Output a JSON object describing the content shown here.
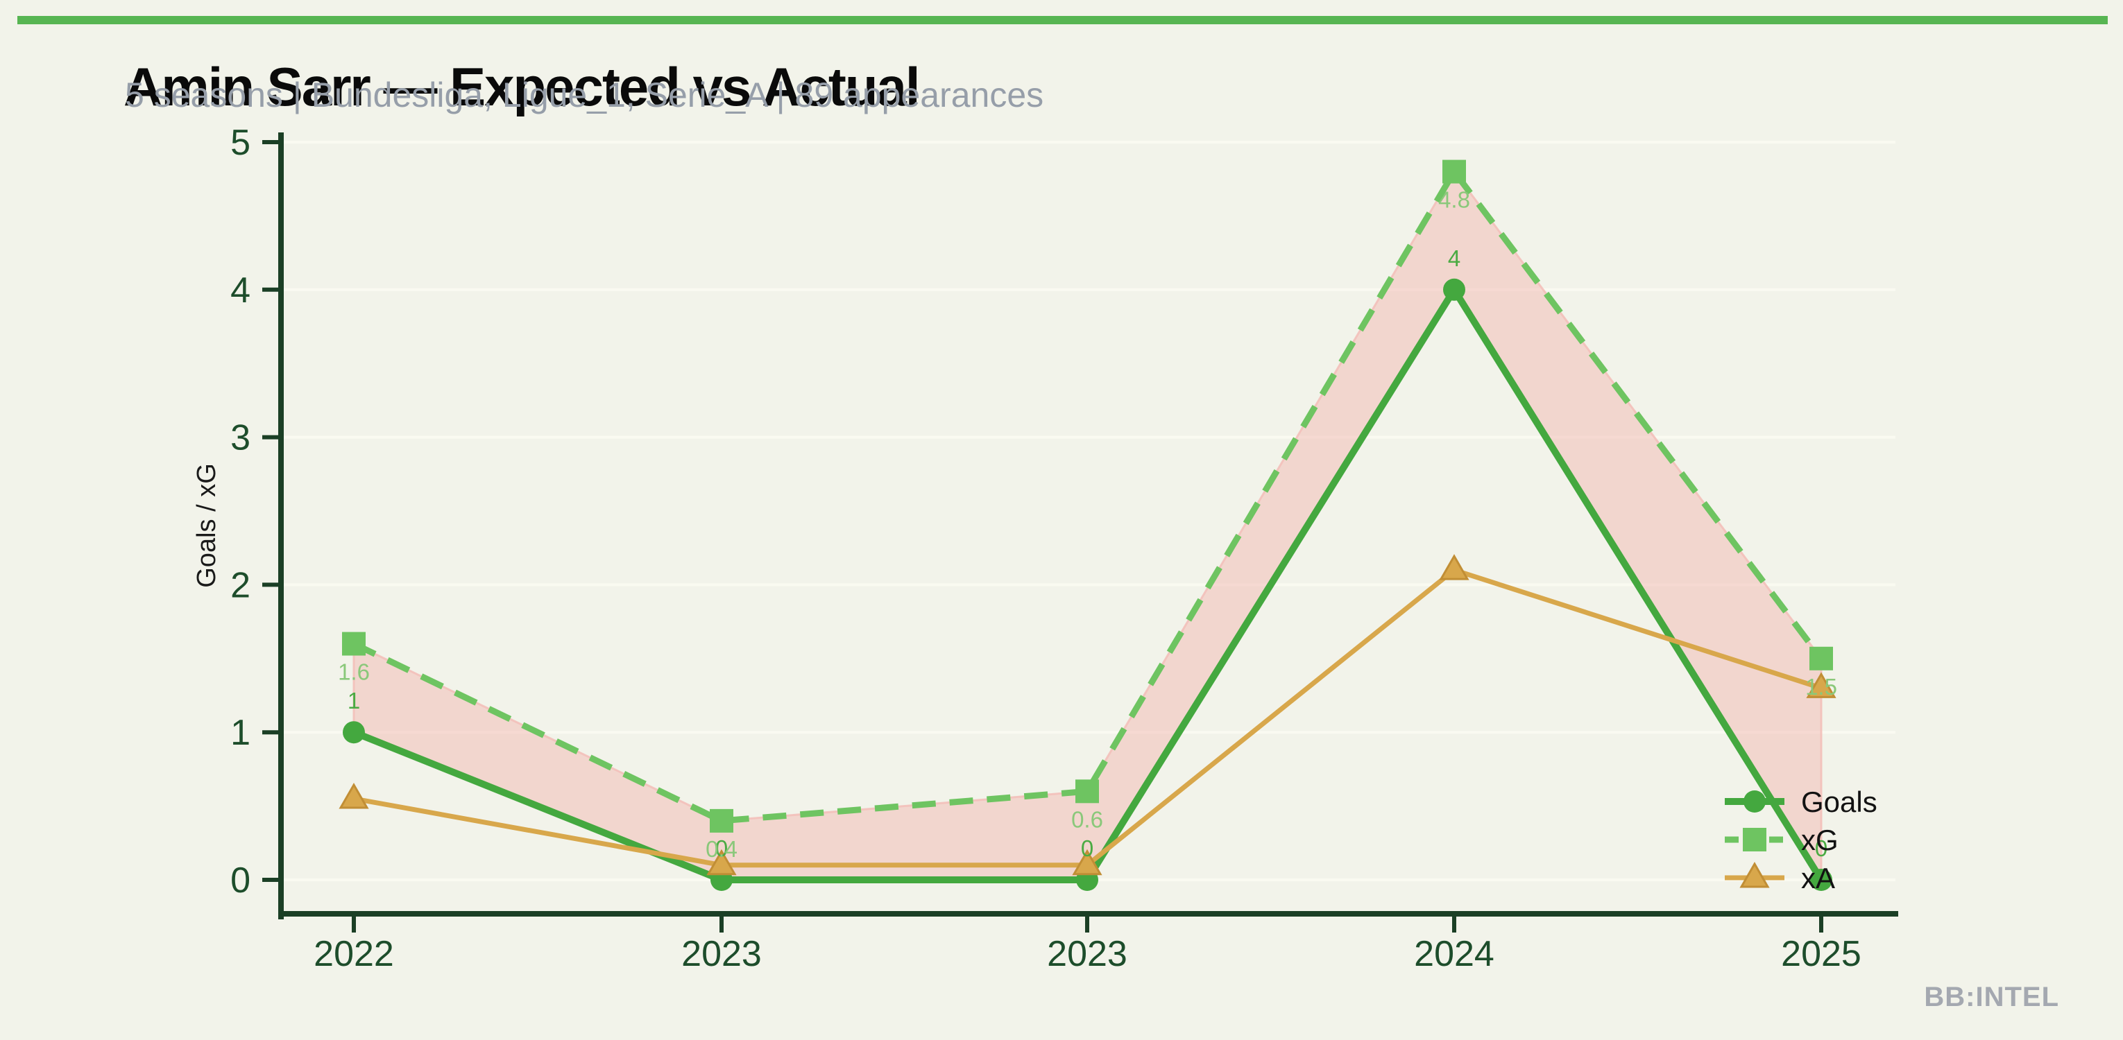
{
  "header": {
    "title": "Amin Sarr — Expected vs Actual",
    "subtitle": "5 seasons | Bundesliga, Ligue_1, Serie_A | 89 appearances"
  },
  "watermark": "BB:INTEL",
  "colors": {
    "background": "#f2f3ea",
    "top_bar": "#57b552",
    "title": "#0a0a0a",
    "subtitle": "#969ea9",
    "axis": "#1b3f25",
    "axis_text": "#1d4d2b",
    "ylabel_text": "#1a1a1a",
    "legend_text": "#121212",
    "goals": "#44a83f",
    "goals_label": "#4bab43",
    "xg": "#6ec461",
    "xg_label": "#8ac87a",
    "xa": "#d8a74b",
    "xa_edge": "#c18e35",
    "band_fill": "#f2b5b0",
    "band_stroke": "#f3c0ba",
    "gridline": "#fafaf1",
    "watermark": "#a4a8b0"
  },
  "chart_data": {
    "type": "line",
    "title": "Amin Sarr — Expected vs Actual",
    "subtitle": "5 seasons | Bundesliga, Ligue_1, Serie_A | 89 appearances",
    "xlabel": "",
    "ylabel": "Goals / xG",
    "categories": [
      "2022",
      "2023",
      "2023",
      "2024",
      "2025"
    ],
    "yticks": [
      0,
      1,
      2,
      3,
      4,
      5
    ],
    "ylim": [
      0,
      5
    ],
    "grid": true,
    "legend_position": "lower right",
    "shaded_band_between": [
      "Goals",
      "xG"
    ],
    "series": [
      {
        "name": "Goals",
        "marker": "circle",
        "line_style": "solid",
        "color_key": "goals",
        "values": [
          1,
          0,
          0,
          4,
          0
        ],
        "point_labels": [
          "1",
          "0",
          "0",
          "4",
          "0"
        ],
        "label_placement": "above",
        "label_color_key": "goals_label"
      },
      {
        "name": "xG",
        "marker": "square",
        "line_style": "dashed",
        "color_key": "xg",
        "values": [
          1.6,
          0.4,
          0.6,
          4.8,
          1.5
        ],
        "point_labels": [
          "1.6",
          "0.4",
          "0.6",
          "4.8",
          "1.5"
        ],
        "label_placement": "below",
        "label_color_key": "xg_label"
      },
      {
        "name": "xA",
        "marker": "triangle",
        "line_style": "solid",
        "color_key": "xa",
        "values": [
          0.55,
          0.1,
          0.1,
          2.1,
          1.3
        ],
        "point_labels": null
      }
    ]
  }
}
